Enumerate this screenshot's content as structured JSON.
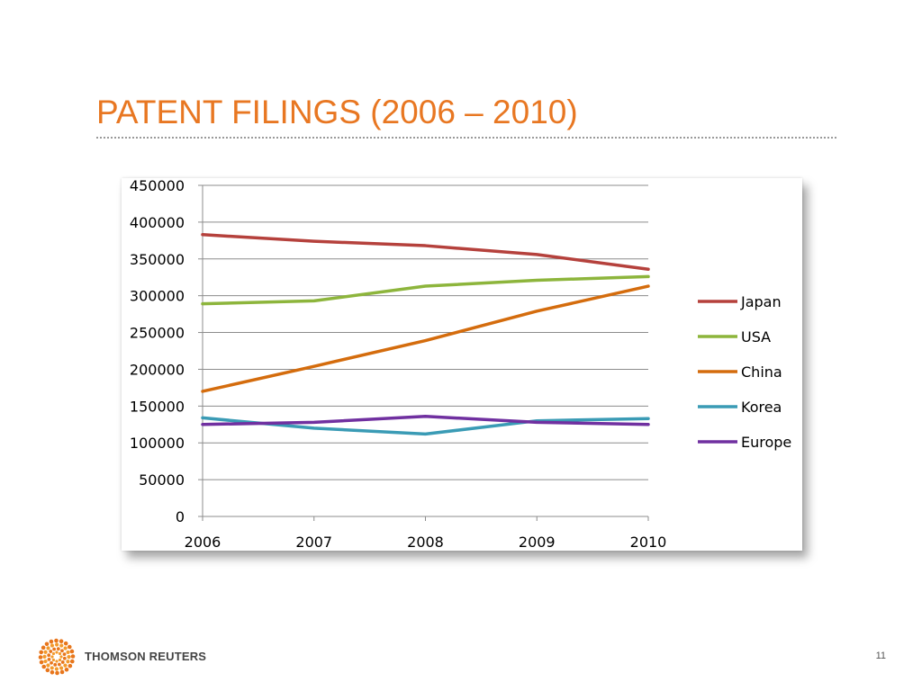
{
  "slide": {
    "title": "PATENT FILINGS (2006 – 2010)",
    "page_number": "11"
  },
  "footer": {
    "brand": "THOMSON REUTERS",
    "logo_icon": "thomson-reuters-logo-icon"
  },
  "colors": {
    "title": "#e87722",
    "Japan": "#b5413c",
    "USA": "#8db53c",
    "China": "#d46c0d",
    "Korea": "#3a9bb5",
    "Europe": "#7030a0"
  },
  "chart_data": {
    "type": "line",
    "title": "",
    "xlabel": "",
    "ylabel": "",
    "x": [
      "2006",
      "2007",
      "2008",
      "2009",
      "2010"
    ],
    "ylim": [
      0,
      450000
    ],
    "yticks": [
      0,
      50000,
      100000,
      150000,
      200000,
      250000,
      300000,
      350000,
      400000,
      450000
    ],
    "grid": true,
    "legend_position": "right",
    "series": [
      {
        "name": "Japan",
        "values": [
          383000,
          374000,
          368000,
          356000,
          336000
        ]
      },
      {
        "name": "USA",
        "values": [
          289000,
          293000,
          313000,
          321000,
          326000
        ]
      },
      {
        "name": "China",
        "values": [
          170000,
          204000,
          239000,
          279000,
          313000
        ]
      },
      {
        "name": "Korea",
        "values": [
          134000,
          120000,
          112000,
          130000,
          133000
        ]
      },
      {
        "name": "Europe",
        "values": [
          125000,
          128000,
          136000,
          128000,
          125000
        ]
      }
    ]
  }
}
